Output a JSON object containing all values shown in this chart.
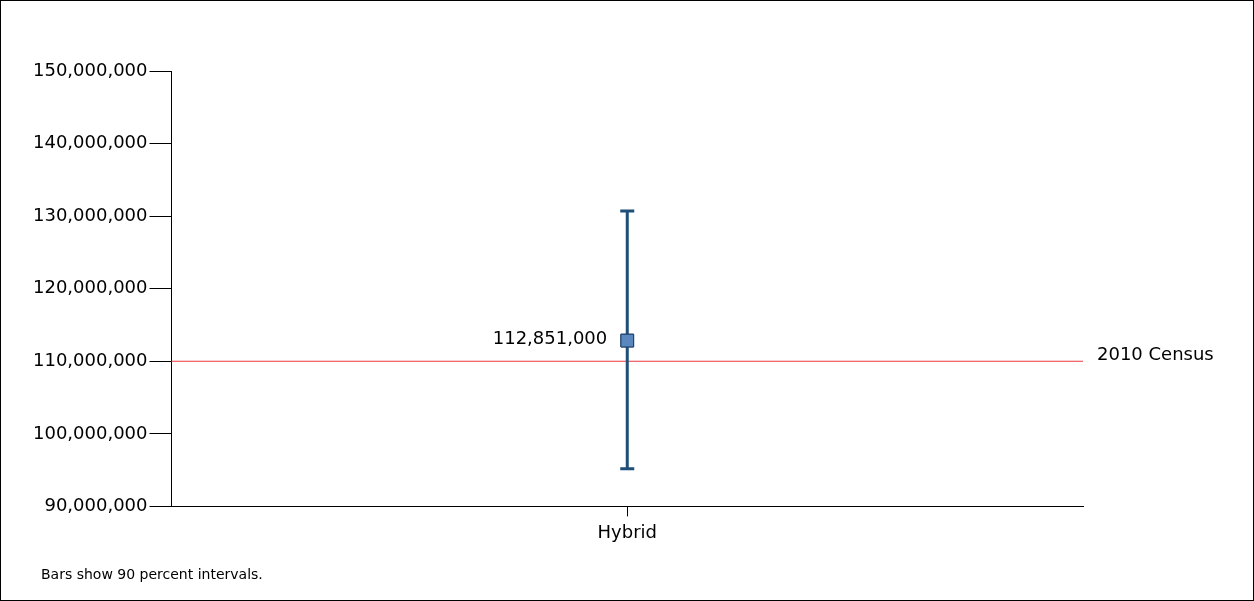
{
  "chart_data": {
    "type": "scatter",
    "categories": [
      "Hybrid"
    ],
    "series": [
      {
        "color": "#5b87bf",
        "values": [
          112851000
        ],
        "errors": [
          [
            95200000,
            130700000
          ]
        ]
      }
    ],
    "value_labels": [
      "112,851,000"
    ],
    "marker": "square",
    "ylim": [
      90000000,
      150000000
    ],
    "yticks": [
      {
        "value": 90000000,
        "label": "90,000,000"
      },
      {
        "value": 100000000,
        "label": "100,000,000"
      },
      {
        "value": 110000000,
        "label": "110,000,000"
      },
      {
        "value": 120000000,
        "label": "120,000,000"
      },
      {
        "value": 130000000,
        "label": "130,000,000"
      },
      {
        "value": 140000000,
        "label": "140,000,000"
      },
      {
        "value": 150000000,
        "label": "150,000,000"
      }
    ],
    "grid": false,
    "legend": false,
    "ref_lines": [
      {
        "axis": "y",
        "value": 110000000,
        "label": "2010 Census",
        "color": "#e8383d"
      }
    ],
    "annotations": [
      "Bars show 90 percent intervals."
    ]
  }
}
